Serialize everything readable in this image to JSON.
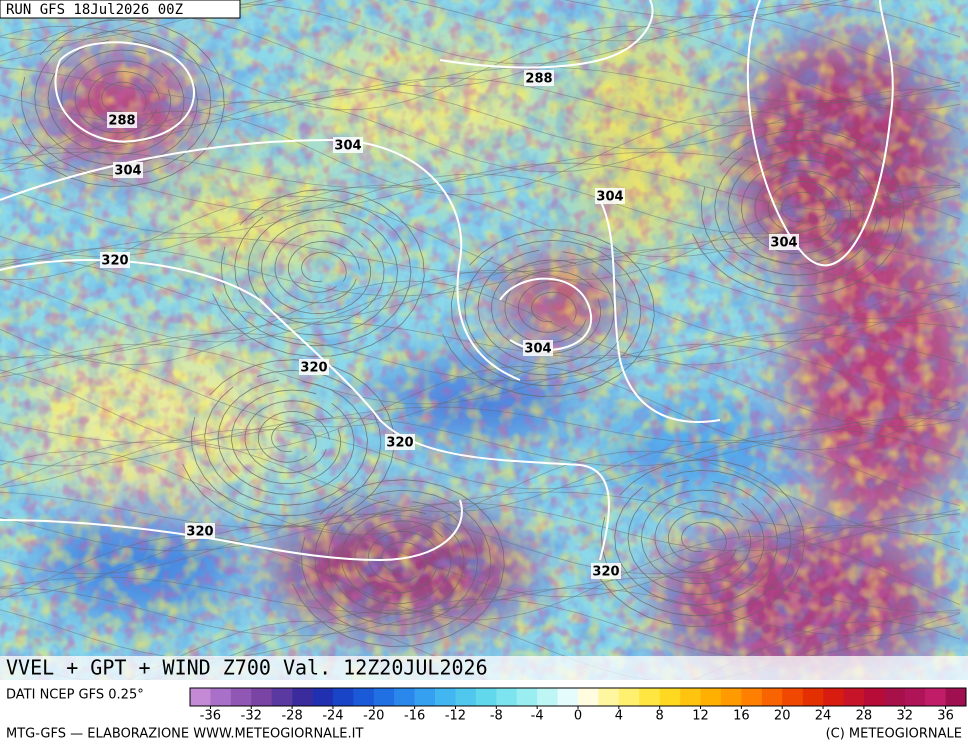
{
  "header": {
    "run": "RUN GFS 18Jul2026 00Z"
  },
  "title": "VVEL + GPT + WIND Z700 Val. 12Z20JUL2026",
  "source": "DATI NCEP GFS 0.25°",
  "contour_labels": [
    "288",
    "288",
    "304",
    "304",
    "304",
    "304",
    "320",
    "304",
    "320",
    "320",
    "320",
    "320"
  ],
  "colorbar": {
    "range": [
      -38,
      38
    ],
    "ticks": [
      -36,
      -32,
      -28,
      -24,
      -20,
      -16,
      -12,
      -8,
      -4,
      0,
      4,
      8,
      12,
      16,
      20,
      24,
      28,
      32,
      36
    ],
    "colors": [
      "#c48ad6",
      "#a870c8",
      "#9058b4",
      "#7a44a4",
      "#5a3aa0",
      "#3a2c9c",
      "#2030b0",
      "#1a44c8",
      "#1a5ad8",
      "#2070e4",
      "#2a88ec",
      "#36a0f0",
      "#42b6f0",
      "#50c8ee",
      "#62d8ec",
      "#7ce4ee",
      "#9aeef2",
      "#bef6f6",
      "#e4fcfc",
      "#fffce0",
      "#fff6a0",
      "#fff070",
      "#ffe640",
      "#ffd820",
      "#ffc410",
      "#ffb000",
      "#ff9a00",
      "#ff8000",
      "#f86400",
      "#f04800",
      "#e43000",
      "#d81c10",
      "#c81428",
      "#b80c38",
      "#a8104a",
      "#b01458",
      "#c01c68",
      "#a01050"
    ]
  },
  "footer": {
    "left": "MTG-GFS — ELABORAZIONE WWW.METEOGIORNALE.IT",
    "right": "(C) METEOGIORNALE"
  }
}
